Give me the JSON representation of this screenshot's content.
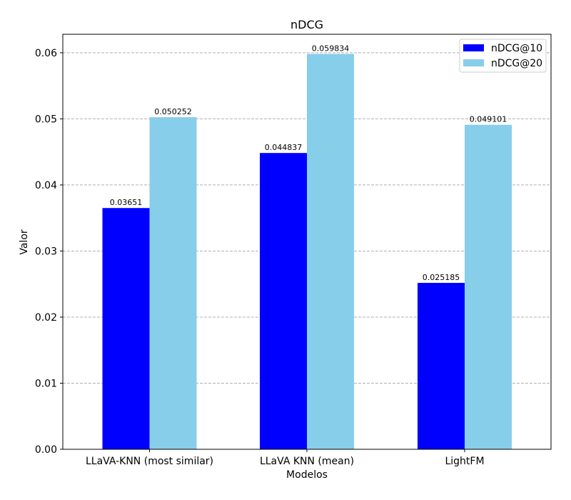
{
  "chart_data": {
    "type": "bar",
    "title": "nDCG",
    "xlabel": "Modelos",
    "ylabel": "Valor",
    "categories": [
      "LLaVA-KNN (most similar)",
      "LLaVA KNN (mean)",
      "LightFM"
    ],
    "series": [
      {
        "name": "nDCG@10",
        "color": "#0000ff",
        "values": [
          0.03651,
          0.044837,
          0.025185
        ],
        "labels": [
          "0.03651",
          "0.044837",
          "0.025185"
        ]
      },
      {
        "name": "nDCG@20",
        "color": "#87ceeb",
        "values": [
          0.050252,
          0.059834,
          0.049101
        ],
        "labels": [
          "0.050252",
          "0.059834",
          "0.049101"
        ]
      }
    ],
    "ylim": [
      0,
      0.0628
    ],
    "yticks": [
      "0.00",
      "0.01",
      "0.02",
      "0.03",
      "0.04",
      "0.05",
      "0.06"
    ],
    "grid": "y-dashed",
    "legend": "top-right"
  }
}
